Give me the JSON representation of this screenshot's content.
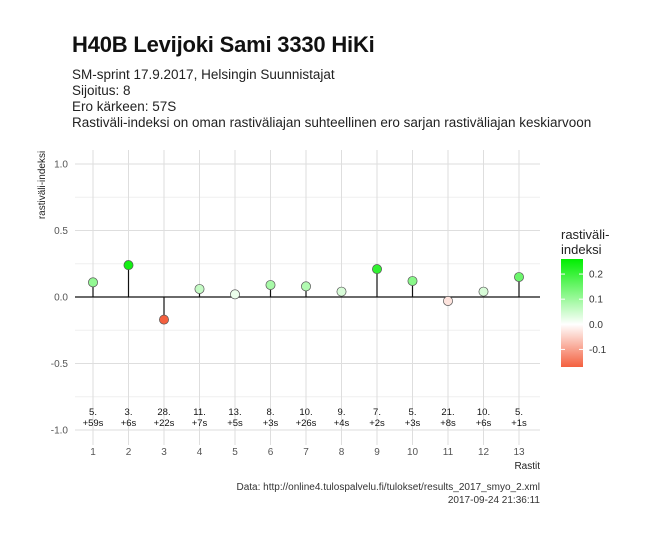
{
  "header": {
    "title": "H40B Levijoki Sami 3330 HiKi",
    "subtitle_lines": [
      "SM-sprint 17.9.2017, Helsingin Suunnistajat",
      "Sijoitus: 8",
      "Ero kärkeen: 57S",
      "Rastiväli-indeksi on oman rastiväliajan suhteellinen ero sarjan rastiväliajan keskiarvoon"
    ]
  },
  "chart_data": {
    "type": "lollipop",
    "xlabel": "Rastit",
    "ylabel": "rastiväli-indeksi",
    "ylim": [
      -1.05,
      1.1
    ],
    "yticks": [
      1.0,
      0.5,
      0.0,
      -0.5,
      -1.0
    ],
    "ytick_labels": [
      "1.0",
      "0.5",
      "0.0",
      "-0.5",
      "-1.0"
    ],
    "x": [
      1,
      2,
      3,
      4,
      5,
      6,
      7,
      8,
      9,
      10,
      11,
      12,
      13
    ],
    "x_tick_labels": [
      "1",
      "2",
      "3",
      "4",
      "5",
      "6",
      "7",
      "8",
      "9",
      "10",
      "11",
      "12",
      "13"
    ],
    "values": [
      0.11,
      0.24,
      -0.17,
      0.06,
      0.02,
      0.09,
      0.08,
      0.04,
      0.21,
      0.12,
      -0.03,
      0.04,
      0.15
    ],
    "annotations": [
      [
        "5.",
        "+59s"
      ],
      [
        "3.",
        "+6s"
      ],
      [
        "28.",
        "+22s"
      ],
      [
        "11.",
        "+7s"
      ],
      [
        "13.",
        "+5s"
      ],
      [
        "8.",
        "+3s"
      ],
      [
        "10.",
        "+26s"
      ],
      [
        "9.",
        "+4s"
      ],
      [
        "7.",
        "+2s"
      ],
      [
        "5.",
        "+3s"
      ],
      [
        "21.",
        "+8s"
      ],
      [
        "10.",
        "+6s"
      ],
      [
        "5.",
        "+1s"
      ]
    ],
    "grid": true,
    "legend": {
      "title_lines": [
        "rastiväli-",
        "indeksi"
      ],
      "position": "right",
      "range": [
        -0.17,
        0.26
      ],
      "ticks": [
        0.2,
        0.1,
        0.0,
        -0.1
      ],
      "tick_labels": [
        "0.2",
        "0.1",
        "0.0",
        "-0.1"
      ]
    },
    "colors": {
      "high": "#00ee00",
      "mid": "#ffffff",
      "low": "#f4603f"
    }
  },
  "caption": {
    "source": "Data: http://online4.tulospalvelu.fi/tulokset/results_2017_smyo_2.xml",
    "timestamp": "2017-09-24 21:36:11"
  }
}
